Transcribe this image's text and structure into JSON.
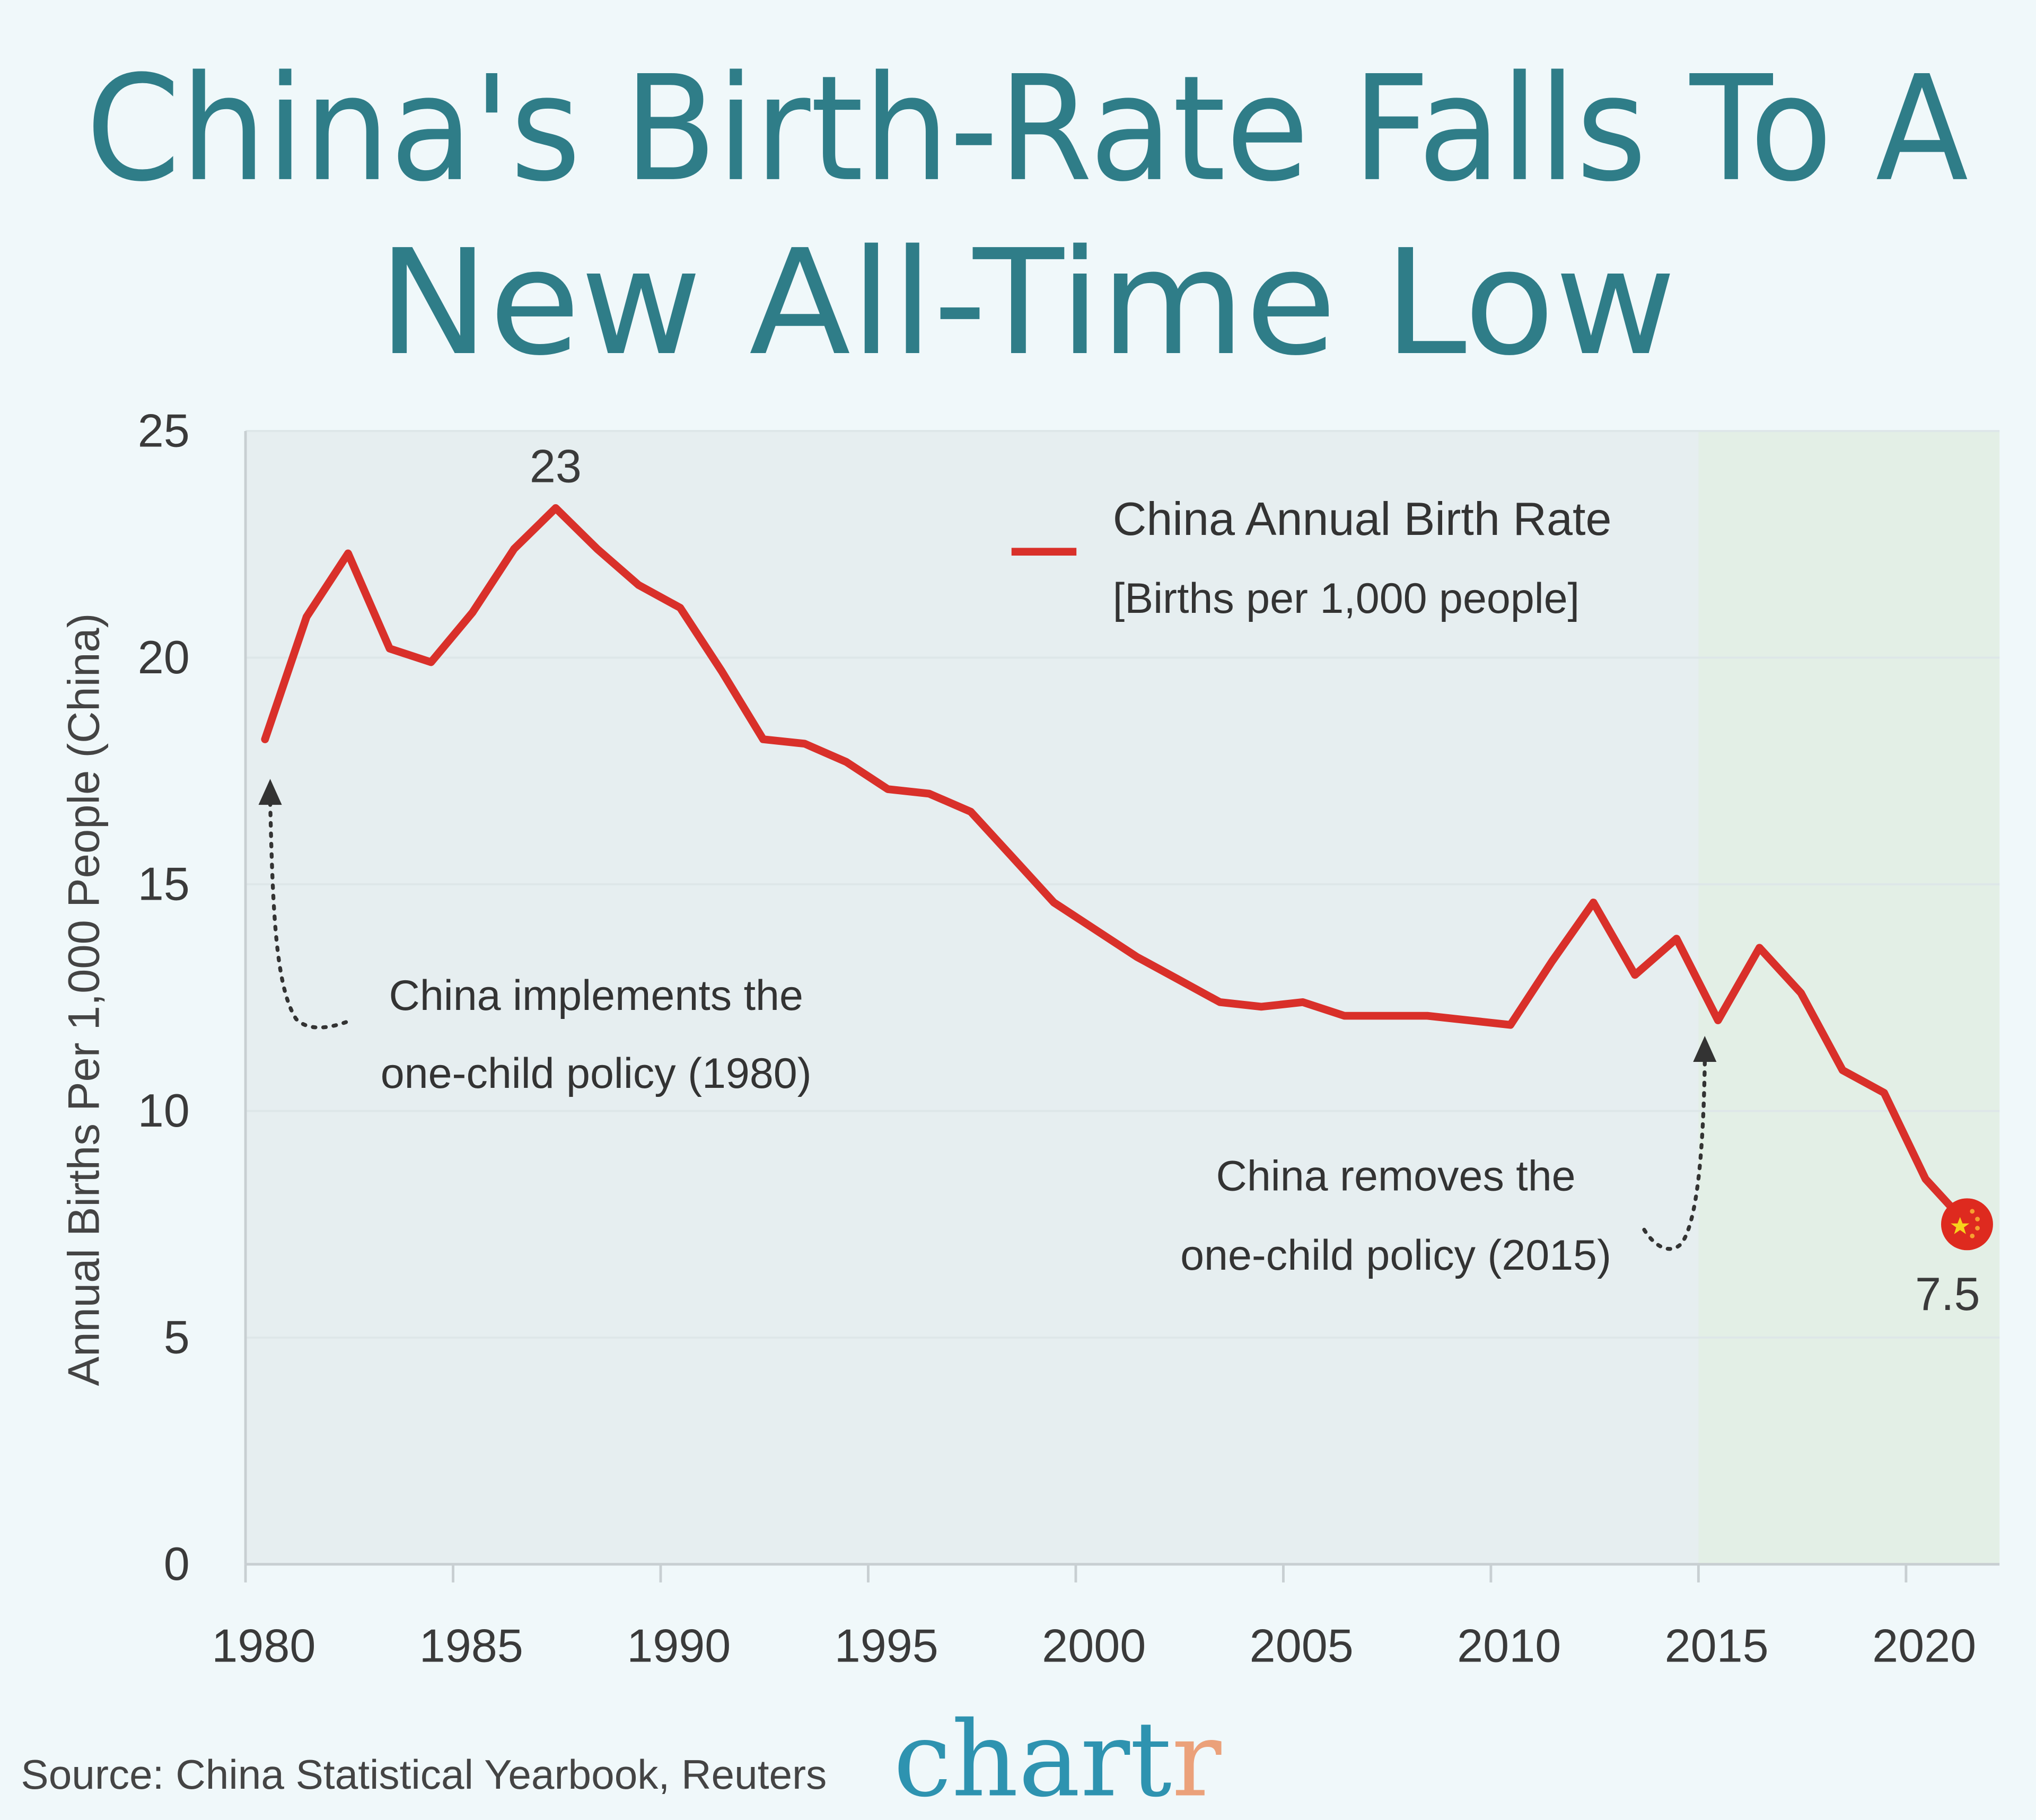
{
  "title_line1": "China's Birth-Rate Falls To A",
  "title_line2": "New All-Time Low",
  "source": "Source: China Statistical Yearbook, Reuters",
  "logo": {
    "main": "chart",
    "accent": "r",
    "main_color": "#2e93b0",
    "accent_color": "#eba17a"
  },
  "colors": {
    "background": "#f0f8fa",
    "plot": "#e6eef0",
    "highlight": "#e3efe6",
    "line": "#d9302a",
    "title": "#2f7d88"
  },
  "chart_data": {
    "type": "line",
    "title": "China's Birth-Rate Falls To A New All-Time Low",
    "xlabel": "",
    "ylabel": "Annual Births Per 1,000 People (China)",
    "xlim": [
      1980,
      2021.5
    ],
    "ylim": [
      0,
      25
    ],
    "xticks": [
      1980,
      1985,
      1990,
      1995,
      2000,
      2005,
      2010,
      2015,
      2020
    ],
    "yticks": [
      0,
      5,
      10,
      15,
      20,
      25
    ],
    "grid": "horizontal",
    "legend_position": "top-right",
    "highlight_range": [
      2015,
      2021.5
    ],
    "series": [
      {
        "name": "China Annual Birth Rate",
        "subtitle": "[Births per 1,000 people]",
        "color": "#d9302a",
        "x": [
          1980,
          1981,
          1982,
          1983,
          1984,
          1985,
          1986,
          1987,
          1988,
          1989,
          1990,
          1991,
          1992,
          1993,
          1994,
          1995,
          1996,
          1997,
          1998,
          1999,
          2000,
          2001,
          2002,
          2003,
          2004,
          2005,
          2006,
          2007,
          2008,
          2009,
          2010,
          2011,
          2012,
          2013,
          2014,
          2015,
          2016,
          2017,
          2018,
          2019,
          2020,
          2021
        ],
        "y": [
          18.2,
          20.9,
          22.3,
          20.2,
          19.9,
          21.0,
          22.4,
          23.3,
          22.4,
          21.6,
          21.1,
          19.7,
          18.2,
          18.1,
          17.7,
          17.1,
          17.0,
          16.6,
          15.6,
          14.6,
          14.0,
          13.4,
          12.9,
          12.4,
          12.3,
          12.4,
          12.1,
          12.1,
          12.1,
          12.0,
          11.9,
          13.3,
          14.6,
          13.0,
          13.8,
          12.0,
          13.6,
          12.6,
          10.9,
          10.4,
          8.5,
          7.5
        ]
      }
    ],
    "annotations": [
      {
        "text": "23",
        "x": 1987,
        "y": 23.3
      },
      {
        "text": "7.5",
        "x": 2021,
        "y": 7.5
      },
      {
        "line1": "China implements the",
        "line2": "one-child policy (1980)",
        "x": 1980
      },
      {
        "line1": "China removes the",
        "line2": "one-child policy (2015)",
        "x": 2015
      }
    ],
    "end_marker": "china-flag-icon"
  }
}
